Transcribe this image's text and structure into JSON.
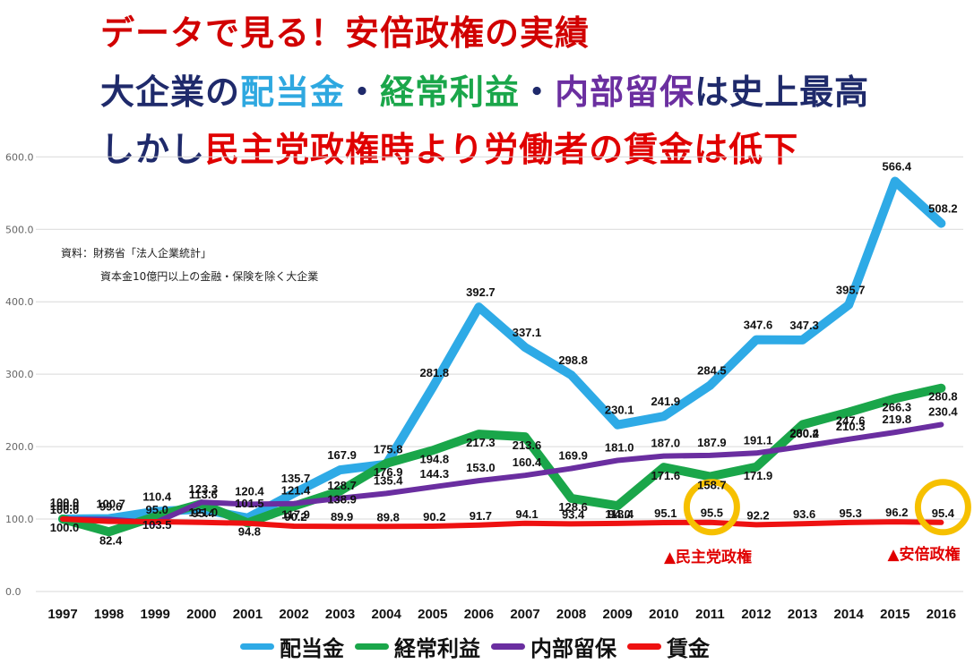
{
  "titles": {
    "line1": [
      {
        "text": "データで見る！安倍政権の実績",
        "color": "#d10000"
      }
    ],
    "line2": [
      {
        "text": "大企業の",
        "color": "#1f2a6b"
      },
      {
        "text": "配当金",
        "color": "#2ea8e0"
      },
      {
        "text": "・",
        "color": "#1f2a6b"
      },
      {
        "text": "経常利益",
        "color": "#1aa64a"
      },
      {
        "text": "・",
        "color": "#1f2a6b"
      },
      {
        "text": "内部留保",
        "color": "#6b2fa0"
      },
      {
        "text": "は史上最高",
        "color": "#1f2a6b"
      }
    ],
    "line3": [
      {
        "text": "しかし",
        "color": "#1f2a6b"
      },
      {
        "text": "民主党政権時より労働者の賃金は低下",
        "color": "#e00000"
      }
    ]
  },
  "source_note": {
    "line1": "資料：財務省「法人企業統計」",
    "line2": "資本金10億円以上の金融・保険を除く大企業"
  },
  "annotations": [
    {
      "text": "▲民主党政権",
      "year": "2011",
      "value": 95.5
    },
    {
      "text": "▲安倍政権",
      "year": "2016",
      "value": 95.4
    }
  ],
  "chart_data": {
    "type": "line",
    "categories": [
      "1997",
      "1998",
      "1999",
      "2000",
      "2001",
      "2002",
      "2003",
      "2004",
      "2005",
      "2006",
      "2007",
      "2008",
      "2009",
      "2010",
      "2011",
      "2012",
      "2013",
      "2014",
      "2015",
      "2016"
    ],
    "ylim": [
      0,
      600
    ],
    "yticks": [
      "0.0",
      "100.0",
      "200.0",
      "300.0",
      "400.0",
      "500.0",
      "600.0"
    ],
    "grid": true,
    "legend_position": "bottom",
    "series": [
      {
        "name": "配当金",
        "color": "#2eaae6",
        "values": [
          100.0,
          100.7,
          110.4,
          113.6,
          101.5,
          135.7,
          167.9,
          175.8,
          281.8,
          392.7,
          337.1,
          298.8,
          230.1,
          241.9,
          284.5,
          347.6,
          347.3,
          395.7,
          566.4,
          508.2
        ],
        "labels": [
          "100.0",
          "100.7",
          "110.4",
          "113.6",
          "101.5",
          "135.7",
          "167.9",
          "175.8",
          "281.8",
          "392.7",
          "337.1",
          "298.8",
          "230.1",
          "241.9",
          "284.5",
          "347.6",
          "347.3",
          "395.7",
          "566.4",
          "508.2"
        ]
      },
      {
        "name": "経常利益",
        "color": "#1aa64a",
        "values": [
          100.0,
          82.4,
          103.5,
          121.0,
          94.8,
          117.9,
          138.9,
          176.9,
          194.8,
          217.3,
          213.6,
          128.6,
          118.4,
          171.6,
          158.7,
          171.9,
          230.4,
          247.6,
          266.3,
          280.8
        ],
        "labels": [
          "100.0",
          "82.4",
          "103.5",
          "121.0",
          "94.8",
          "117.9",
          "138.9",
          "176.9",
          "194.8",
          "217.3",
          "213.6",
          "128.6",
          "118.4",
          "171.6",
          "158.7",
          "171.9",
          "230.4",
          "247.6",
          "266.3",
          "280.8"
        ]
      },
      {
        "name": "内部留保",
        "color": "#6a2ea0",
        "values": [
          100.0,
          99.6,
          95.0,
          123.3,
          120.4,
          121.4,
          128.7,
          135.4,
          144.3,
          153.0,
          160.4,
          169.9,
          181.0,
          187.0,
          187.9,
          191.1,
          200.2,
          210.3,
          219.8,
          230.4
        ],
        "labels": [
          "100.0",
          "99.6",
          "95.0",
          "123.3",
          "120.4",
          "121.4",
          "128.7",
          "135.4",
          "144.3",
          "153.0",
          "160.4",
          "169.9",
          "181.0",
          "187.0",
          "187.9",
          "191.1",
          "200.2",
          "210.3",
          "219.8",
          "230.4"
        ]
      },
      {
        "name": "賃金",
        "color": "#ee1111",
        "values": [
          100.0,
          96.8,
          96.3,
          95.4,
          94.3,
          90.2,
          89.9,
          89.8,
          90.2,
          91.7,
          94.1,
          93.4,
          94.0,
          95.1,
          95.5,
          92.2,
          93.6,
          95.3,
          96.2,
          95.4
        ],
        "labels": [
          "100.0",
          "",
          "",
          "95.4",
          "",
          "90.2",
          "89.9",
          "89.8",
          "90.2",
          "91.7",
          "94.1",
          "93.4",
          "94.0",
          "95.1",
          "95.5",
          "92.2",
          "93.6",
          "95.3",
          "96.2",
          "95.4"
        ]
      }
    ]
  }
}
